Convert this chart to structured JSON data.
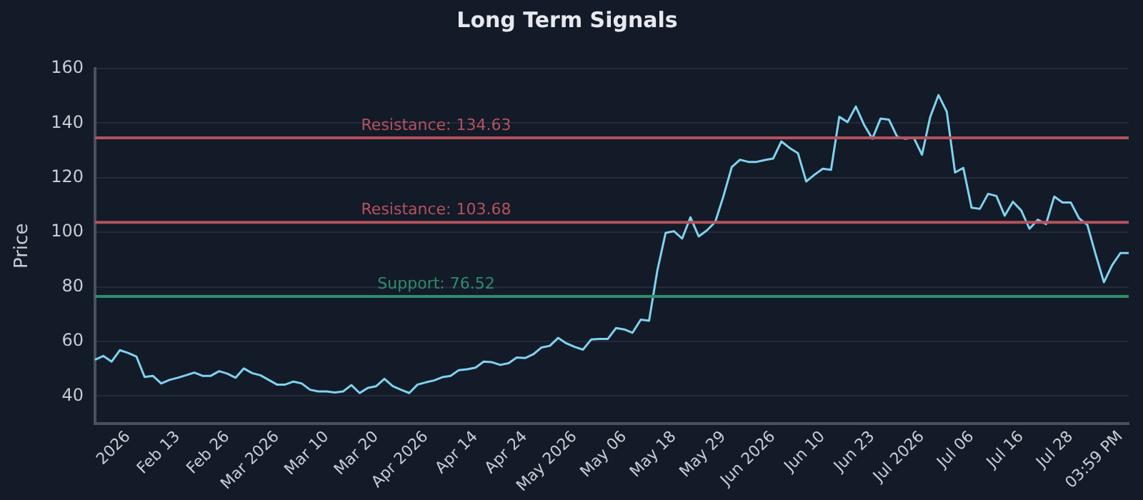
{
  "chart_data": {
    "type": "line",
    "title": "Long Term Signals",
    "ylabel": "Price",
    "categories": [
      null,
      null,
      null,
      null,
      "2026",
      null,
      null,
      null,
      null,
      null,
      "Feb 13",
      null,
      null,
      null,
      null,
      null,
      "Feb 26",
      null,
      null,
      null,
      null,
      null,
      "Mar 2026",
      null,
      null,
      null,
      null,
      null,
      "Mar 10",
      null,
      null,
      null,
      null,
      null,
      "Mar 20",
      null,
      null,
      null,
      null,
      null,
      "Apr 2026",
      null,
      null,
      null,
      null,
      null,
      "Apr 14",
      null,
      null,
      null,
      null,
      null,
      "Apr 24",
      null,
      null,
      null,
      null,
      null,
      "May 2026",
      null,
      null,
      null,
      null,
      null,
      "May 06",
      null,
      null,
      null,
      null,
      null,
      "May 18",
      null,
      null,
      null,
      null,
      null,
      "May 29",
      null,
      null,
      null,
      null,
      null,
      "Jun 2026",
      null,
      null,
      null,
      null,
      null,
      "Jun 10",
      null,
      null,
      null,
      null,
      null,
      "Jun 23",
      null,
      null,
      null,
      null,
      null,
      "Jul 2026",
      null,
      null,
      null,
      null,
      null,
      "Jul 06",
      null,
      null,
      null,
      null,
      null,
      "Jul 16",
      null,
      null,
      null,
      null,
      null,
      "Jul 28",
      null,
      null,
      null,
      null,
      null,
      "03:59 PM",
      null
    ],
    "series": [
      {
        "color": "#7fd3ee",
        "values": [
          53.3,
          54.7,
          52.6,
          56.8,
          55.8,
          54.5,
          47.0,
          47.4,
          44.6,
          45.9,
          46.7,
          47.6,
          48.6,
          47.4,
          47.4,
          49.1,
          48.2,
          46.7,
          50.1,
          48.4,
          47.6,
          45.9,
          44.2,
          44.2,
          45.3,
          44.6,
          42.3,
          41.7,
          41.7,
          41.3,
          41.7,
          44.0,
          41.1,
          43.0,
          43.6,
          46.3,
          43.6,
          42.3,
          41.1,
          44.2,
          45.0,
          45.7,
          46.9,
          47.4,
          49.5,
          49.8,
          50.4,
          52.6,
          52.4,
          51.4,
          52.0,
          54.1,
          53.9,
          55.3,
          57.8,
          58.4,
          61.3,
          59.3,
          58.0,
          57.0,
          60.7,
          60.9,
          60.9,
          64.9,
          64.4,
          63.2,
          68.0,
          67.6,
          86.0,
          99.8,
          100.4,
          97.7,
          105.5,
          98.5,
          100.7,
          103.8,
          113.3,
          123.9,
          126.6,
          125.8,
          125.8,
          126.5,
          127.0,
          133.3,
          130.9,
          129.0,
          118.6,
          121.1,
          123.3,
          122.9,
          142.3,
          140.4,
          146.1,
          139.4,
          134.3,
          141.7,
          141.3,
          135.0,
          134.3,
          134.7,
          128.4,
          142.3,
          150.3,
          144.2,
          121.9,
          123.6,
          109.0,
          108.6,
          114.1,
          113.3,
          106.1,
          111.2,
          108.0,
          101.3,
          104.6,
          103.0,
          113.1,
          110.9,
          110.9,
          105.1,
          102.7,
          91.9,
          81.7,
          88.0,
          92.4,
          92.4
        ]
      }
    ],
    "ylim": [
      30,
      160
    ],
    "yticks": [
      40,
      60,
      80,
      100,
      120,
      140,
      160
    ],
    "grid": "y",
    "legend": false,
    "marker": "none",
    "line_style": "solid",
    "ref_lines": [
      {
        "axis": "y",
        "value": 134.63,
        "label": "Resistance: 134.63",
        "color": "#b5525e"
      },
      {
        "axis": "y",
        "value": 103.68,
        "label": "Resistance: 103.68",
        "color": "#b5525e"
      },
      {
        "axis": "y",
        "value": 76.52,
        "label": "Support: 76.52",
        "color": "#2e8c6c"
      }
    ]
  }
}
